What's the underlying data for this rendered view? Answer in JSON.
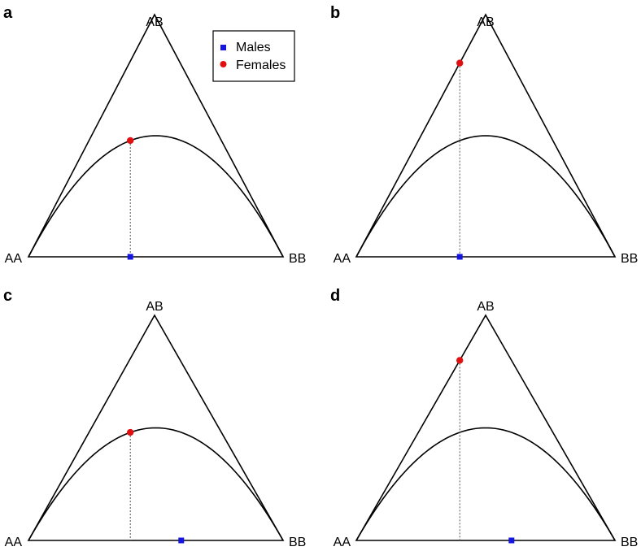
{
  "vertex_labels": {
    "left": "AA",
    "top": "AB",
    "right": "BB"
  },
  "legend": {
    "items": [
      {
        "label": "Males",
        "marker": "square",
        "color": "#1515e0"
      },
      {
        "label": "Females",
        "marker": "circle",
        "color": "#e01010"
      }
    ]
  },
  "colors": {
    "male": "#1515e0",
    "female": "#e01010",
    "line": "#000000",
    "guide": "#555555"
  },
  "panels": [
    {
      "id": "a",
      "letter": "a",
      "male_allele_freq_B": 0.4,
      "female_allele_freq_B": 0.4,
      "female_heterozygosity": 0.48
    },
    {
      "id": "b",
      "letter": "b",
      "male_allele_freq_B": 0.4,
      "female_allele_freq_B": 0.4,
      "female_heterozygosity": 0.8
    },
    {
      "id": "c",
      "letter": "c",
      "male_allele_freq_B": 0.6,
      "female_allele_freq_B": 0.4,
      "female_heterozygosity": 0.48
    },
    {
      "id": "d",
      "letter": "d",
      "male_allele_freq_B": 0.6,
      "female_allele_freq_B": 0.4,
      "female_heterozygosity": 0.8
    }
  ]
}
